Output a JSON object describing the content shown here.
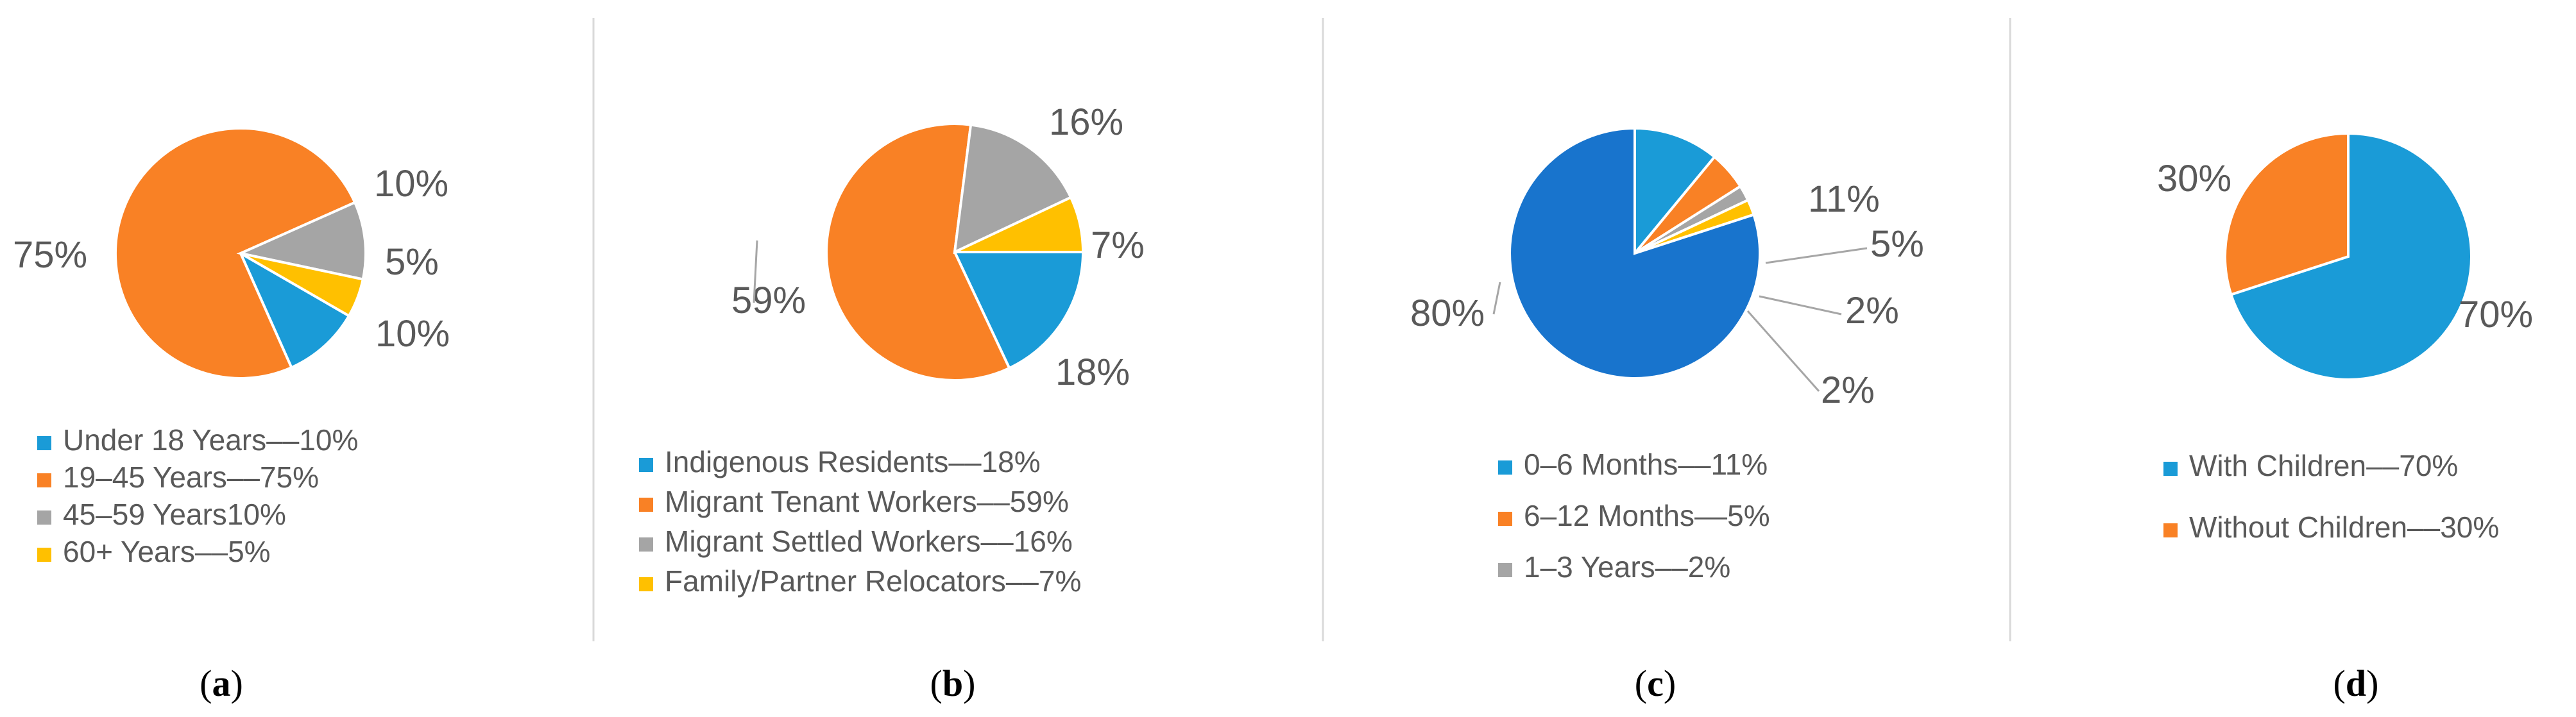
{
  "chart_data": [
    {
      "type": "pie",
      "slices": [
        {
          "label": "Under 18 Years––10%",
          "value": 10,
          "pct_label": "10%",
          "color": "#1A9BD7"
        },
        {
          "label": "19–45 Years––75%",
          "value": 75,
          "pct_label": "75%",
          "color": "#F98125"
        },
        {
          "label": "45–59 Years10%",
          "value": 10,
          "pct_label": "10%",
          "color": "#A5A5A5"
        },
        {
          "label": "60+ Years––5%",
          "value": 5,
          "pct_label": "5%",
          "color": "#FFC000"
        }
      ],
      "caption": {
        "open": "(",
        "letter": "a",
        "close": ")"
      }
    },
    {
      "type": "pie",
      "slices": [
        {
          "label": "Indigenous Residents––18%",
          "value": 18,
          "pct_label": "18%",
          "color": "#1A9BD7"
        },
        {
          "label": "Migrant Tenant Workers––59%",
          "value": 59,
          "pct_label": "59%",
          "color": "#F98125"
        },
        {
          "label": "Migrant Settled Workers––16%",
          "value": 16,
          "pct_label": "16%",
          "color": "#A5A5A5"
        },
        {
          "label": "Family/Partner Relocators––7%",
          "value": 7,
          "pct_label": "7%",
          "color": "#FFC000"
        }
      ],
      "caption": {
        "open": "(",
        "letter": "b",
        "close": ")"
      }
    },
    {
      "type": "pie",
      "slices": [
        {
          "label": "0–6 Months––11%",
          "value": 11,
          "pct_label": "11%",
          "color": "#1A9BD7"
        },
        {
          "label": "6–12 Months––5%",
          "value": 5,
          "pct_label": "5%",
          "color": "#F98125"
        },
        {
          "label": "1–3 Years––2%",
          "value": 2,
          "pct_label": "2%",
          "color": "#A5A5A5"
        },
        {
          "label": "",
          "value": 2,
          "pct_label": "2%",
          "color": "#FFC000"
        },
        {
          "label": "",
          "value": 80,
          "pct_label": "80%",
          "color": "#1874CD"
        }
      ],
      "caption": {
        "open": "(",
        "letter": "c",
        "close": ")"
      }
    },
    {
      "type": "pie",
      "slices": [
        {
          "label": "With Children––70%",
          "value": 70,
          "pct_label": "70%",
          "color": "#1A9BD7"
        },
        {
          "label": "Without Children––30%",
          "value": 30,
          "pct_label": "30%",
          "color": "#F98125"
        }
      ],
      "caption": {
        "open": "(",
        "letter": "d",
        "close": ")"
      }
    }
  ]
}
